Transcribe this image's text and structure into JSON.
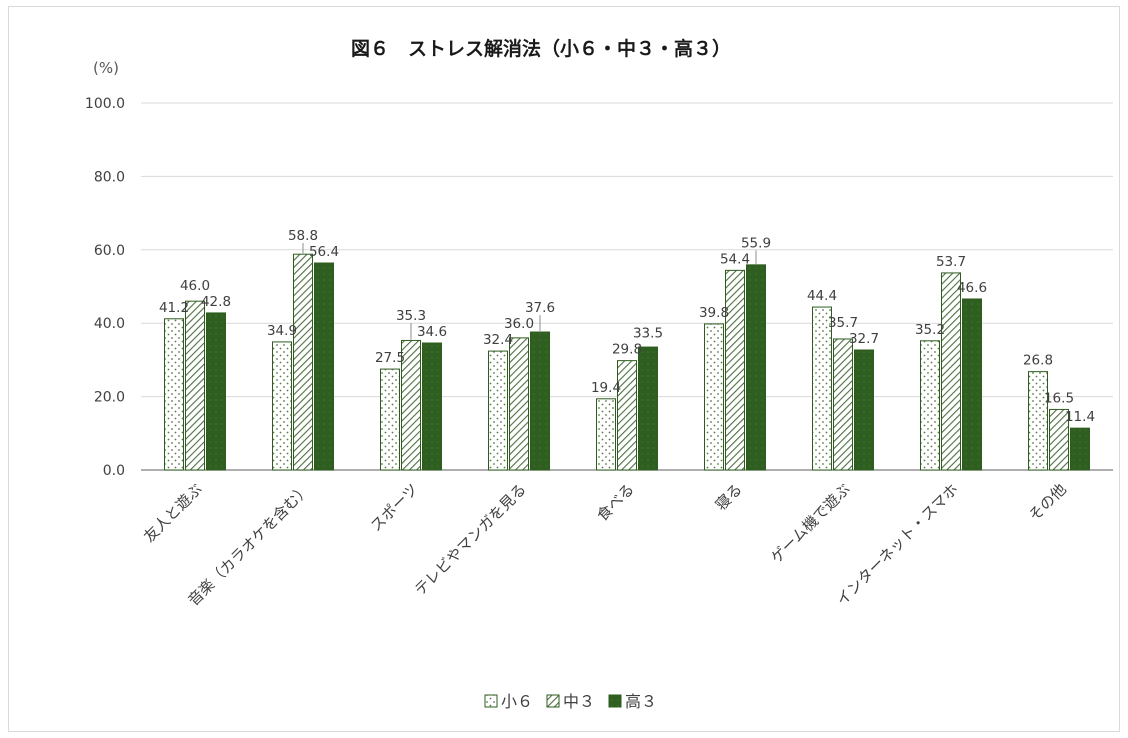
{
  "chart_data": {
    "type": "bar",
    "title": "図６　ストレス解消法（小６・中３・高３）",
    "unit_label": "(%)",
    "ylim": [
      0,
      100
    ],
    "yticks": [
      "0.0",
      "20.0",
      "40.0",
      "60.0",
      "80.0",
      "100.0"
    ],
    "grid": true,
    "legend_position": "bottom",
    "categories": [
      "友人と遊ぶ",
      "音楽（カラオケを含む）",
      "スポーツ",
      "テレビやマンガを見る",
      "食べる",
      "寝る",
      "ゲーム機で遊ぶ",
      "インターネット・スマホ",
      "その他"
    ],
    "series": [
      {
        "name": "小６",
        "values": [
          41.2,
          34.9,
          27.5,
          32.4,
          19.4,
          39.8,
          44.4,
          35.2,
          26.8
        ]
      },
      {
        "name": "中３",
        "values": [
          46.0,
          58.8,
          35.3,
          36.0,
          29.8,
          54.4,
          35.7,
          53.7,
          16.5
        ]
      },
      {
        "name": "高３",
        "values": [
          42.8,
          56.4,
          34.6,
          37.6,
          33.5,
          55.9,
          32.7,
          46.6,
          11.4
        ]
      }
    ]
  },
  "colors": {
    "axis": "#7f7f7f",
    "grid": "#d9d9d9",
    "bar_outline": "#2e5c1f",
    "dots": "#5a7a4a",
    "hatch": "#4d7040",
    "dark_fill": "#2f5f20"
  }
}
